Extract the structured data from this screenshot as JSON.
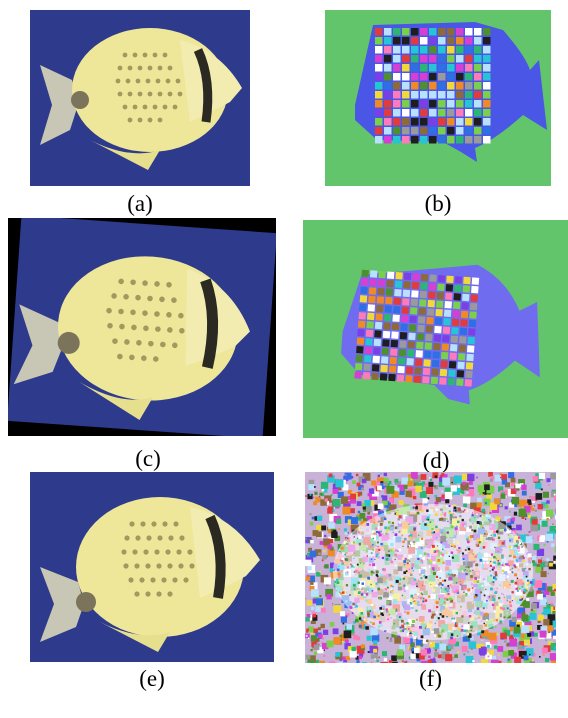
{
  "figure": {
    "panels": [
      {
        "id": "a",
        "caption": "(a)",
        "content": "fish-photo"
      },
      {
        "id": "b",
        "caption": "(b)",
        "content": "segmentation-checkerboard"
      },
      {
        "id": "c",
        "caption": "(c)",
        "content": "fish-photo-rotated"
      },
      {
        "id": "d",
        "caption": "(d)",
        "content": "segmentation-checkerboard-rotated"
      },
      {
        "id": "e",
        "caption": "(e)",
        "content": "fish-photo-recovered"
      },
      {
        "id": "f",
        "caption": "(f)",
        "content": "noise-image"
      }
    ],
    "colors": {
      "water": "#2e3a8c",
      "fish_body": "#eee79a",
      "seg_background": "#63c56b",
      "seg_fish_b": "#4a56e6",
      "seg_fish_d": "#6f6cf0"
    }
  }
}
